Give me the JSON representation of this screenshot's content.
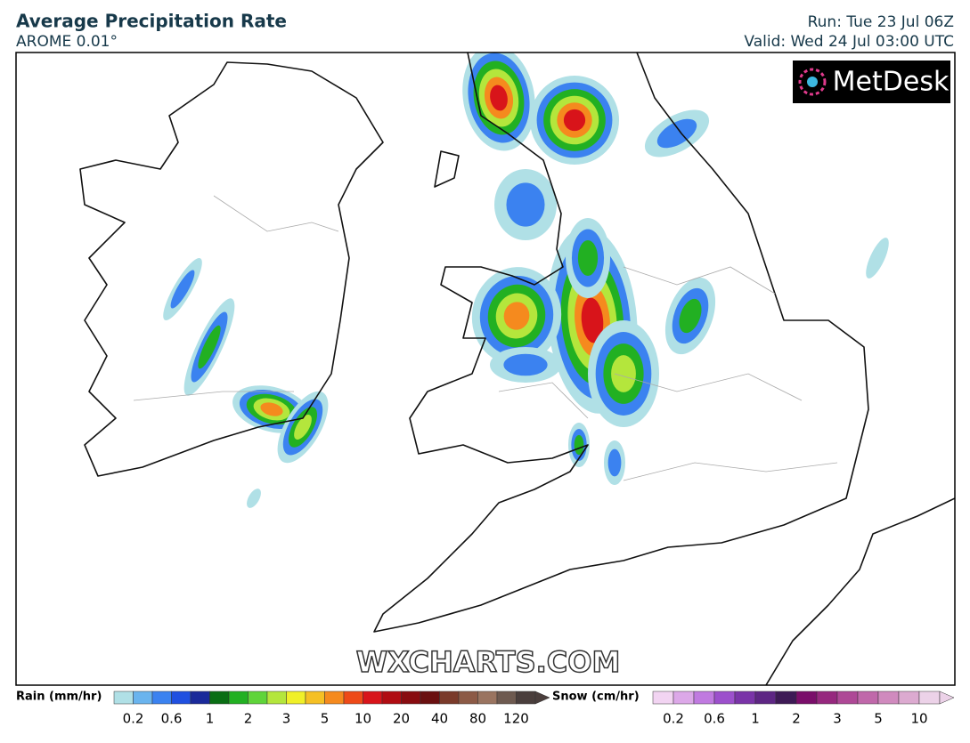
{
  "header": {
    "title": "Average Precipitation Rate",
    "model": "AROME 0.01°",
    "run": "Run: Tue 23 Jul 06Z",
    "valid": "Valid: Wed 24 Jul 03:00 UTC"
  },
  "logo": "MetDesk",
  "watermark": "WXCHARTS.COM",
  "legends": [
    {
      "label": "Rain (mm/hr)",
      "colors": [
        "#b0e0e6",
        "#6ab4ee",
        "#3b82f0",
        "#2050e0",
        "#1a2a9a",
        "#0a6e14",
        "#22b022",
        "#5fd43a",
        "#b4e63c",
        "#f0f028",
        "#f5c024",
        "#f58a1e",
        "#ee4a18",
        "#d8141a",
        "#b00c12",
        "#880c10",
        "#6a1010",
        "#7a3a2a",
        "#8c5a46",
        "#9a7460",
        "#6e5a50",
        "#4a3e3c"
      ],
      "ticks": [
        0.2,
        0.6,
        1,
        2,
        3,
        5,
        10,
        20,
        40,
        80,
        120
      ]
    },
    {
      "label": "Snow (cm/hr)",
      "colors": [
        "#f2d4f2",
        "#dca8e8",
        "#c07ae0",
        "#9c50cc",
        "#7a34a8",
        "#5e2684",
        "#3e1a56",
        "#7a0e6a",
        "#96287e",
        "#ae4896",
        "#c068aa",
        "#d08abe",
        "#dcaad0",
        "#ecd2e8"
      ],
      "ticks": [
        0.2,
        0.6,
        1,
        2,
        3,
        5,
        10
      ]
    }
  ]
}
